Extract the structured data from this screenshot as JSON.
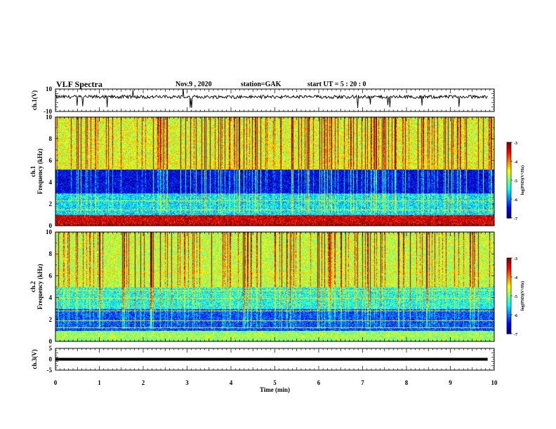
{
  "header": {
    "title": "VLF Spectra",
    "date": "Nov.9 , 2020",
    "station": "station=GAK",
    "start": "start UT = 5 : 20 : 0"
  },
  "colorbar_label": "log(PSD)(V²/Hz)",
  "colors": {
    "colormap": [
      "#00007f",
      "#0000ff",
      "#007fff",
      "#00ffff",
      "#7fff7f",
      "#ffff00",
      "#ff7f00",
      "#ff0000",
      "#7f0000"
    ],
    "trace": "#000000"
  },
  "chart_data": [
    {
      "type": "line",
      "name": "channel-1-waveform",
      "ylabel": "ch.1(V)",
      "ylim": [
        -10,
        10
      ],
      "yticks": [
        "10",
        "-10"
      ],
      "xlim": [
        0,
        10
      ],
      "baseline": 3,
      "noise_amplitude": 1.5
    },
    {
      "type": "heatmap",
      "name": "channel-1-spectrogram",
      "ylabel": "ch.1 Frequency (kHz)",
      "ylim": [
        0,
        10
      ],
      "yticks": [
        "0",
        "2",
        "4",
        "6",
        "8",
        "10"
      ],
      "xlim": [
        0,
        10
      ],
      "colorbar": {
        "range": [
          -7,
          -3
        ],
        "ticks": [
          "-3",
          "-4",
          "-5",
          "-6",
          "-7"
        ]
      },
      "bands": [
        {
          "from": 0,
          "to": 1,
          "level": -3.3
        },
        {
          "from": 1,
          "to": 3,
          "level": -5.6
        },
        {
          "from": 3,
          "to": 5.2,
          "level": -6.6
        },
        {
          "from": 5.2,
          "to": 10,
          "level": -4.6
        }
      ],
      "lines_khz": [
        0.5,
        1.5,
        2.3,
        5.4,
        5.9
      ]
    },
    {
      "type": "heatmap",
      "name": "channel-2-spectrogram",
      "ylabel": "ch.2 Frequency (kHz)",
      "ylim": [
        0,
        10
      ],
      "yticks": [
        "0",
        "2",
        "4",
        "6",
        "8",
        "10"
      ],
      "xlim": [
        0,
        10
      ],
      "colorbar": {
        "range": [
          -7,
          -3
        ],
        "ticks": [
          "-3",
          "-4",
          "-5",
          "-6",
          "-7"
        ]
      },
      "bands": [
        {
          "from": 0,
          "to": 1,
          "level": -4.9
        },
        {
          "from": 1,
          "to": 3,
          "level": -6.2
        },
        {
          "from": 3,
          "to": 5,
          "level": -5.4
        },
        {
          "from": 5,
          "to": 10,
          "level": -4.7
        }
      ],
      "lines_khz": [
        0.5,
        1.3,
        1.9,
        2.8,
        4.0,
        4.7,
        6.3
      ]
    },
    {
      "type": "line",
      "name": "channel-3-waveform",
      "ylabel": "ch.3(V)",
      "ylim": [
        -5,
        5
      ],
      "yticks": [
        "5",
        "0",
        "-5"
      ],
      "xlim": [
        0,
        10
      ],
      "xticks": [
        "0",
        "1",
        "2",
        "3",
        "4",
        "5",
        "6",
        "7",
        "8",
        "9",
        "10"
      ],
      "xlabel": "Time (min)",
      "baseline": 0,
      "noise_amplitude": 0
    }
  ]
}
